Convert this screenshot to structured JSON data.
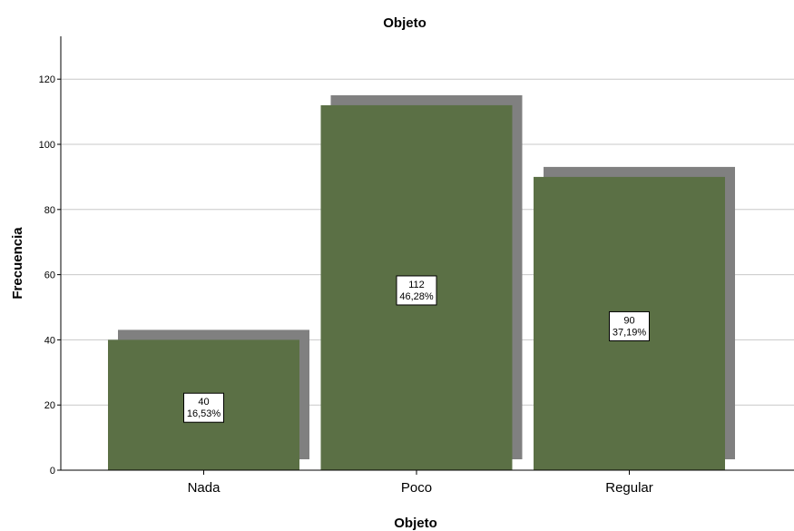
{
  "chart_data": {
    "type": "bar",
    "title": "Objeto",
    "xlabel": "Objeto",
    "ylabel": "Frecuencia",
    "categories": [
      "Nada",
      "Poco",
      "Regular"
    ],
    "values": [
      40,
      112,
      90
    ],
    "percent_labels": [
      "16,53%",
      "46,28%",
      "37,19%"
    ],
    "ylim": [
      0,
      133
    ],
    "yticks": [
      0,
      20,
      40,
      60,
      80,
      100,
      120
    ],
    "grid": true,
    "legend": false,
    "bar_color": "#5b7045",
    "shadow_color": "#808080"
  }
}
